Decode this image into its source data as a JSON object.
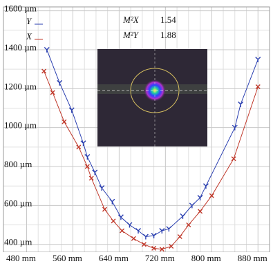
{
  "chart_data": {
    "type": "line",
    "series": [
      {
        "name": "Y",
        "color": "#2a3fb0",
        "x": [
          515,
          537,
          558,
          578,
          585,
          598,
          610,
          628,
          643,
          658,
          673,
          686,
          700,
          714,
          726,
          750,
          766,
          780,
          790,
          840,
          850,
          880
        ],
        "values": [
          1400,
          1230,
          1090,
          920,
          850,
          770,
          690,
          620,
          540,
          500,
          470,
          440,
          445,
          470,
          480,
          545,
          600,
          640,
          700,
          1000,
          1120,
          1350
        ]
      },
      {
        "name": "X",
        "color": "#c0392b",
        "x": [
          510,
          525,
          545,
          570,
          585,
          592,
          615,
          630,
          645,
          665,
          683,
          700,
          714,
          730,
          745,
          760,
          780,
          800,
          838,
          880
        ],
        "values": [
          1290,
          1180,
          1030,
          900,
          800,
          740,
          580,
          520,
          470,
          430,
          400,
          380,
          375,
          390,
          440,
          500,
          570,
          650,
          840,
          1210
        ]
      }
    ],
    "xlim": [
      440,
      900
    ],
    "ylim": [
      360,
      1620
    ],
    "xticks": [
      {
        "value": 480,
        "label": "480 mm"
      },
      {
        "value": 560,
        "label": "560 mm"
      },
      {
        "value": 640,
        "label": "640 mm"
      },
      {
        "value": 720,
        "label": "720 mm"
      },
      {
        "value": 800,
        "label": "800 mm"
      },
      {
        "value": 880,
        "label": "880 mm"
      }
    ],
    "yticks": [
      {
        "value": 400,
        "label": "400 µm"
      },
      {
        "value": 600,
        "label": "600 µm"
      },
      {
        "value": 800,
        "label": "800 µm"
      },
      {
        "value": 1000,
        "label": "1000 µm"
      },
      {
        "value": 1200,
        "label": "1200 µm"
      },
      {
        "value": 1400,
        "label": "1400 µm"
      },
      {
        "value": 1600,
        "label": "1600 µm"
      }
    ],
    "grid": true,
    "annotations": [
      {
        "label": "M²X",
        "value": 1.54
      },
      {
        "label": "M²Y",
        "value": 1.88
      }
    ]
  }
}
